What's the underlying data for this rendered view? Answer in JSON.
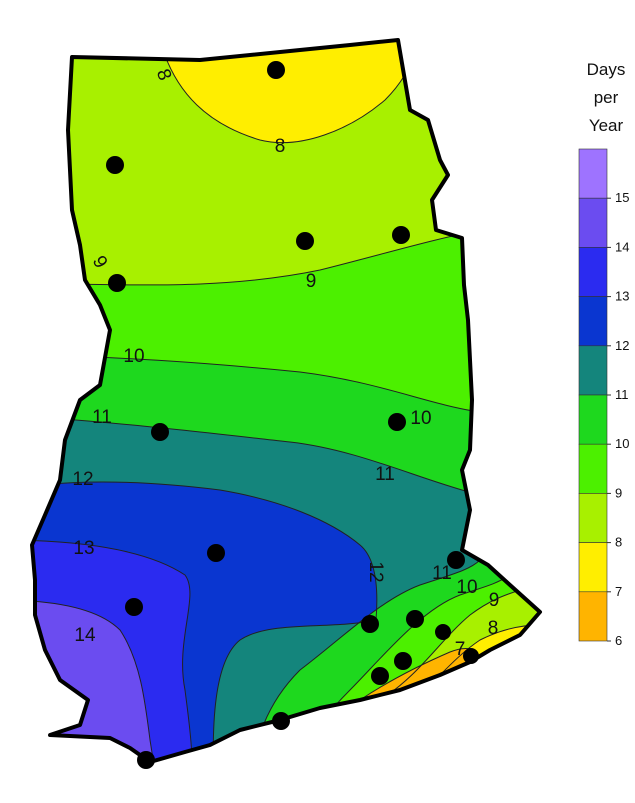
{
  "legend": {
    "title_lines": [
      "Days",
      "per",
      "Year"
    ],
    "ticks": [
      "15",
      "14",
      "13",
      "12",
      "11",
      "10",
      "9",
      "8",
      "7",
      "6"
    ],
    "bands": [
      {
        "from": 15,
        "to": 16,
        "color": "#9e73ff"
      },
      {
        "from": 14,
        "to": 15,
        "color": "#6b4cf0"
      },
      {
        "from": 13,
        "to": 14,
        "color": "#2b2bf0"
      },
      {
        "from": 12,
        "to": 13,
        "color": "#0a36d0"
      },
      {
        "from": 11,
        "to": 12,
        "color": "#14857c"
      },
      {
        "from": 10,
        "to": 11,
        "color": "#1ed81e"
      },
      {
        "from": 9,
        "to": 10,
        "color": "#4cf000"
      },
      {
        "from": 8,
        "to": 9,
        "color": "#a8f000"
      },
      {
        "from": 7,
        "to": 8,
        "color": "#ffee00"
      },
      {
        "from": 6,
        "to": 7,
        "color": "#ffb400"
      }
    ]
  },
  "contour_labels": [
    {
      "text": "8",
      "rotate": 70
    },
    {
      "text": "8",
      "rotate": 0
    },
    {
      "text": "9",
      "rotate": 60
    },
    {
      "text": "9",
      "rotate": 0
    },
    {
      "text": "10",
      "rotate": 0
    },
    {
      "text": "10",
      "rotate": 0
    },
    {
      "text": "11",
      "rotate": 0
    },
    {
      "text": "11",
      "rotate": 0
    },
    {
      "text": "12",
      "rotate": 0
    },
    {
      "text": "12",
      "rotate": 90
    },
    {
      "text": "13",
      "rotate": 0
    },
    {
      "text": "14",
      "rotate": 0
    },
    {
      "text": "11",
      "rotate": 0
    },
    {
      "text": "10",
      "rotate": 0
    },
    {
      "text": "9",
      "rotate": 0
    },
    {
      "text": "8",
      "rotate": 0
    },
    {
      "text": "7",
      "rotate": 0
    }
  ],
  "stations_count": 18
}
